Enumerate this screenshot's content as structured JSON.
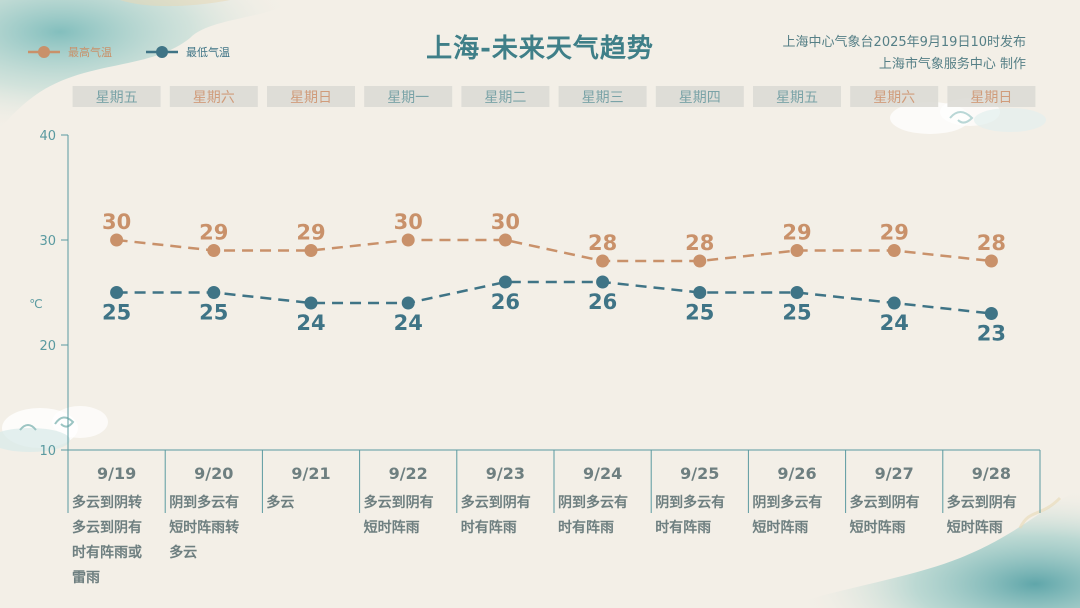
{
  "header": {
    "title": "上海-未来天气趋势",
    "source_line1": "上海中心气象台2025年9月19日10时发布",
    "source_line2": "上海市气象服务中心 制作"
  },
  "legend": {
    "high": "最高气温",
    "low": "最低气温"
  },
  "colors": {
    "high": "#c9916a",
    "low": "#3f7486",
    "axis": "#5a9aa0",
    "accent": "#3f7f88",
    "weekday_bg": "#dcdad5",
    "weekday_text": "#7aa3a7",
    "weekend_text": "#d09c7b"
  },
  "chart_data": {
    "type": "line",
    "unit": "℃",
    "ylim": [
      10,
      40
    ],
    "yticks": [
      10,
      20,
      30,
      40
    ],
    "categories": [
      "9/19",
      "9/20",
      "9/21",
      "9/22",
      "9/23",
      "9/24",
      "9/25",
      "9/26",
      "9/27",
      "9/28"
    ],
    "weekdays": [
      "星期五",
      "星期六",
      "星期日",
      "星期一",
      "星期二",
      "星期三",
      "星期四",
      "星期五",
      "星期六",
      "星期日"
    ],
    "weekend": [
      false,
      true,
      true,
      false,
      false,
      false,
      false,
      false,
      true,
      true
    ],
    "series": [
      {
        "name": "最高气温",
        "values": [
          30,
          29,
          29,
          30,
          30,
          28,
          28,
          29,
          29,
          28
        ]
      },
      {
        "name": "最低气温",
        "values": [
          25,
          25,
          24,
          24,
          26,
          26,
          25,
          25,
          24,
          23
        ]
      }
    ],
    "weather": [
      [
        "多云到阴转",
        "多云到阴有",
        "时有阵雨或",
        "雷雨"
      ],
      [
        "阴到多云有",
        "短时阵雨转",
        "多云"
      ],
      [
        "多云"
      ],
      [
        "多云到阴有",
        "短时阵雨"
      ],
      [
        "多云到阴有",
        "时有阵雨"
      ],
      [
        "阴到多云有",
        "时有阵雨"
      ],
      [
        "阴到多云有",
        "时有阵雨"
      ],
      [
        "阴到多云有",
        "短时阵雨"
      ],
      [
        "多云到阴有",
        "短时阵雨"
      ],
      [
        "多云到阴有",
        "短时阵雨"
      ]
    ]
  }
}
